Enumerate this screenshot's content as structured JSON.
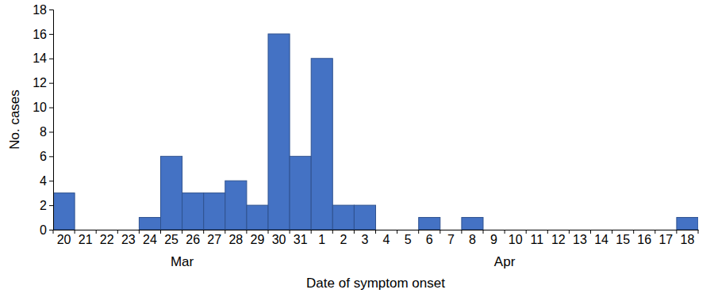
{
  "chart_data": {
    "type": "bar",
    "categories": [
      "20",
      "21",
      "22",
      "23",
      "24",
      "25",
      "26",
      "27",
      "28",
      "29",
      "30",
      "31",
      "1",
      "2",
      "3",
      "4",
      "5",
      "6",
      "7",
      "8",
      "9",
      "10",
      "11",
      "12",
      "13",
      "14",
      "15",
      "16",
      "17",
      "18"
    ],
    "values": [
      3,
      0,
      0,
      0,
      1,
      6,
      3,
      3,
      4,
      2,
      16,
      6,
      14,
      2,
      2,
      0,
      0,
      1,
      0,
      1,
      0,
      0,
      0,
      0,
      0,
      0,
      0,
      0,
      0,
      1
    ],
    "x_groups": [
      {
        "label": "Mar",
        "from": "20",
        "to": "31"
      },
      {
        "label": "Apr",
        "from": "1",
        "to": "18"
      }
    ],
    "x_label": "Date of symptom onset",
    "y_label": "No. cases",
    "color": "#4472c4",
    "ylim": [
      0,
      18
    ],
    "yticks": [
      0,
      2,
      4,
      6,
      8,
      10,
      12,
      14,
      16,
      18
    ],
    "grid": false
  }
}
